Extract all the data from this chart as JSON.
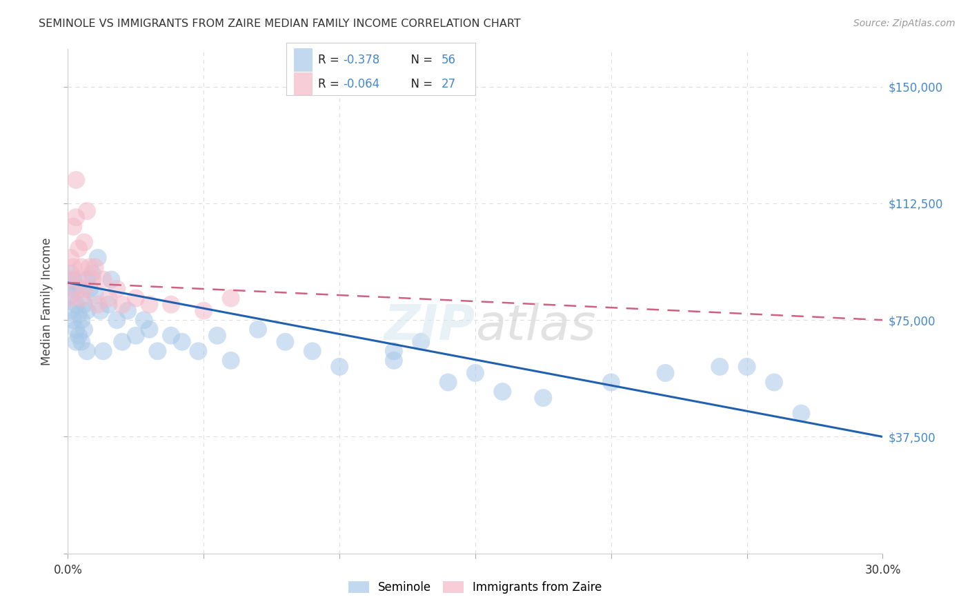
{
  "title": "SEMINOLE VS IMMIGRANTS FROM ZAIRE MEDIAN FAMILY INCOME CORRELATION CHART",
  "source": "Source: ZipAtlas.com",
  "ylabel": "Median Family Income",
  "yticks": [
    0,
    37500,
    75000,
    112500,
    150000
  ],
  "ytick_labels_right": [
    "",
    "$37,500",
    "$75,000",
    "$112,500",
    "$150,000"
  ],
  "xmin": 0.0,
  "xmax": 0.3,
  "ymin": 0,
  "ymax": 162000,
  "legend_r1": "R = -0.378",
  "legend_n1": "N = 56",
  "legend_r2": "R = -0.064",
  "legend_n2": "N = 27",
  "color_blue": "#a8c8e8",
  "color_pink": "#f4b8c8",
  "color_blue_line": "#2060b0",
  "color_pink_line": "#d06080",
  "background_color": "#ffffff",
  "grid_color": "#dddddd",
  "seminole_x": [
    0.001,
    0.001,
    0.001,
    0.002,
    0.002,
    0.002,
    0.003,
    0.003,
    0.003,
    0.004,
    0.004,
    0.004,
    0.005,
    0.005,
    0.006,
    0.006,
    0.007,
    0.007,
    0.007,
    0.008,
    0.009,
    0.01,
    0.011,
    0.012,
    0.013,
    0.015,
    0.016,
    0.018,
    0.02,
    0.022,
    0.025,
    0.028,
    0.03,
    0.033,
    0.038,
    0.042,
    0.048,
    0.055,
    0.06,
    0.07,
    0.08,
    0.09,
    0.1,
    0.12,
    0.14,
    0.16,
    0.175,
    0.2,
    0.22,
    0.24,
    0.12,
    0.13,
    0.15,
    0.26,
    0.27,
    0.25
  ],
  "seminole_y": [
    90000,
    83000,
    78000,
    85000,
    75000,
    88000,
    80000,
    72000,
    68000,
    85000,
    77000,
    70000,
    75000,
    68000,
    80000,
    72000,
    88000,
    78000,
    65000,
    85000,
    90000,
    83000,
    95000,
    78000,
    65000,
    80000,
    88000,
    75000,
    68000,
    78000,
    70000,
    75000,
    72000,
    65000,
    70000,
    68000,
    65000,
    70000,
    62000,
    72000,
    68000,
    65000,
    60000,
    62000,
    55000,
    52000,
    50000,
    55000,
    58000,
    60000,
    65000,
    68000,
    58000,
    55000,
    45000,
    60000
  ],
  "zaire_x": [
    0.001,
    0.001,
    0.001,
    0.002,
    0.002,
    0.003,
    0.003,
    0.004,
    0.004,
    0.005,
    0.005,
    0.006,
    0.006,
    0.007,
    0.008,
    0.009,
    0.01,
    0.011,
    0.013,
    0.015,
    0.018,
    0.02,
    0.025,
    0.03,
    0.038,
    0.05,
    0.06
  ],
  "zaire_y": [
    95000,
    88000,
    82000,
    105000,
    92000,
    120000,
    108000,
    98000,
    88000,
    92000,
    82000,
    100000,
    85000,
    110000,
    92000,
    88000,
    92000,
    80000,
    88000,
    82000,
    85000,
    80000,
    82000,
    80000,
    80000,
    78000,
    82000
  ],
  "blue_line_x": [
    0.0,
    0.3
  ],
  "blue_line_y": [
    87000,
    37500
  ],
  "pink_line_x": [
    0.0,
    0.3
  ],
  "pink_line_y": [
    87000,
    75000
  ]
}
